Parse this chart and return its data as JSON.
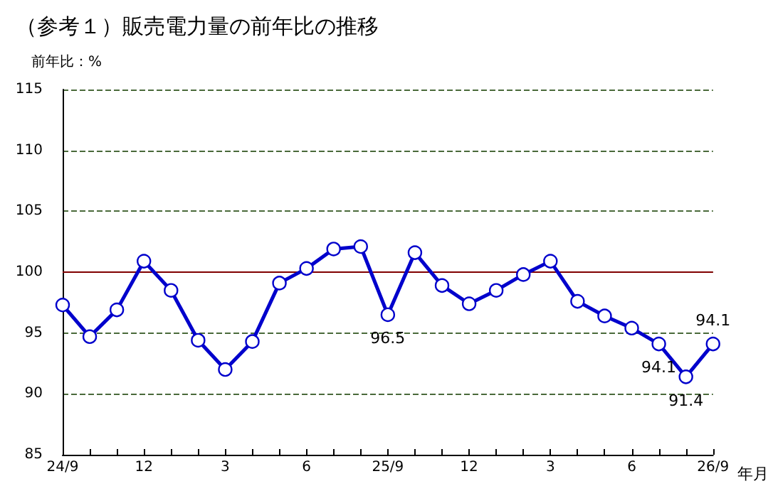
{
  "chart_data": {
    "type": "line",
    "title": "（参考１）販売電力量の前年比の推移",
    "ylabel": "前年比：%",
    "xlabel": "年月",
    "categories": [
      "24/9",
      null,
      null,
      "12",
      null,
      null,
      "3",
      null,
      null,
      "6",
      null,
      null,
      "25/9",
      null,
      null,
      "12",
      null,
      null,
      "3",
      null,
      null,
      "6",
      null,
      null,
      "26/9"
    ],
    "series": [
      {
        "color": "#0000cc",
        "values": [
          97.3,
          94.7,
          96.9,
          100.9,
          98.5,
          94.4,
          92.0,
          94.3,
          99.1,
          100.3,
          101.9,
          102.1,
          96.5,
          101.6,
          98.9,
          97.4,
          98.5,
          99.8,
          100.9,
          97.6,
          96.4,
          95.4,
          94.1,
          91.4,
          94.1
        ],
        "value_labels": [
          null,
          null,
          null,
          null,
          null,
          null,
          null,
          null,
          null,
          null,
          null,
          null,
          "96.5",
          null,
          null,
          null,
          null,
          null,
          null,
          null,
          null,
          null,
          "94.1",
          "91.4",
          "94.1"
        ]
      }
    ],
    "ylim": [
      85,
      115
    ],
    "yticks": [
      85,
      90,
      95,
      100,
      105,
      110,
      115
    ],
    "grid": "y",
    "marker": "circle",
    "line_style": "solid",
    "ref_lines": [
      {
        "axis": "y",
        "value": 100,
        "color": "#800000",
        "line_style": "solid"
      }
    ]
  }
}
